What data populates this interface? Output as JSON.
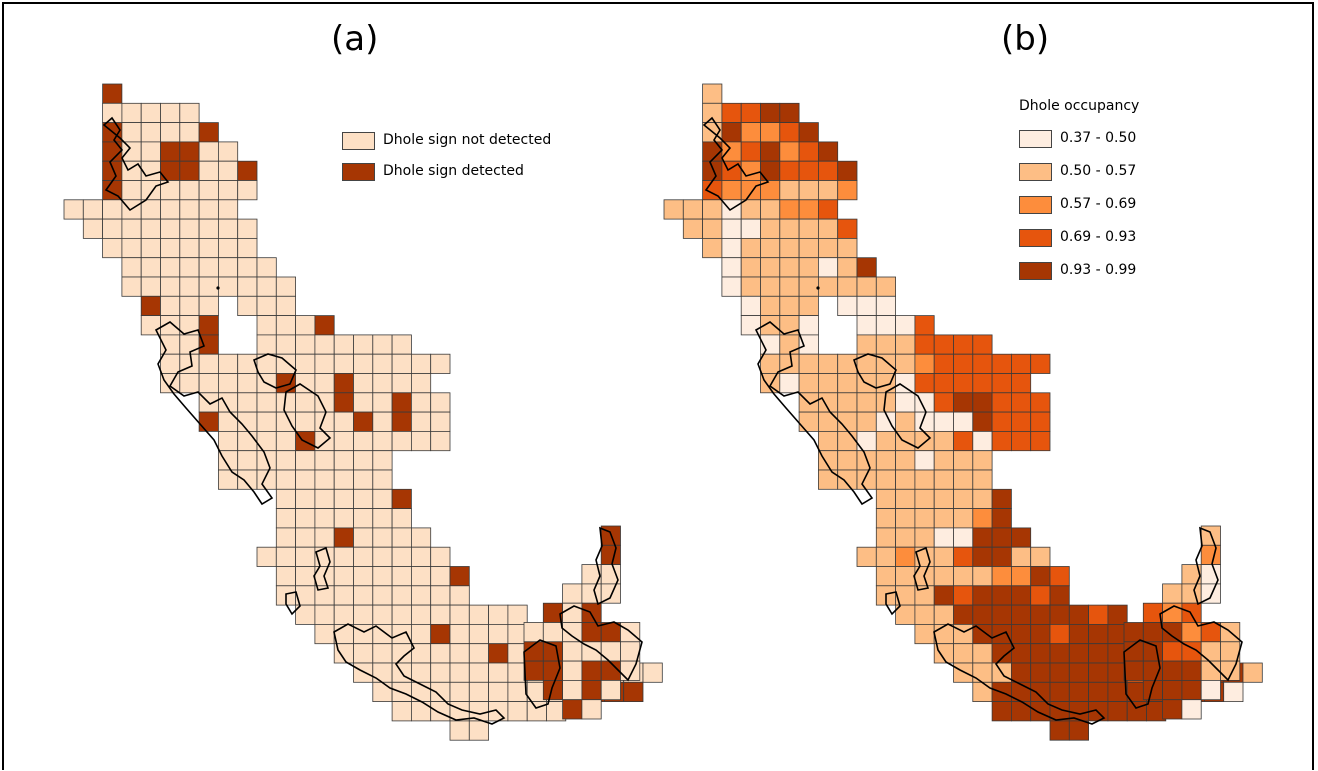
{
  "panels": {
    "a": {
      "label": "(a)"
    },
    "b": {
      "label": "(b)"
    }
  },
  "legend_a": {
    "items": [
      {
        "label": "Dhole sign not detected",
        "color": "#fde0c5"
      },
      {
        "label": "Dhole sign detected",
        "color": "#a63603"
      }
    ]
  },
  "legend_b": {
    "title": "Dhole occupancy",
    "items": [
      {
        "label": "0.37 - 0.50",
        "color": "#feede0"
      },
      {
        "label": "0.50 - 0.57",
        "color": "#fdbe85"
      },
      {
        "label": "0.57 - 0.69",
        "color": "#fd8d3c"
      },
      {
        "label": "0.69 - 0.93",
        "color": "#e6550d"
      },
      {
        "label": "0.93 - 0.99",
        "color": "#a63603"
      }
    ]
  }
}
